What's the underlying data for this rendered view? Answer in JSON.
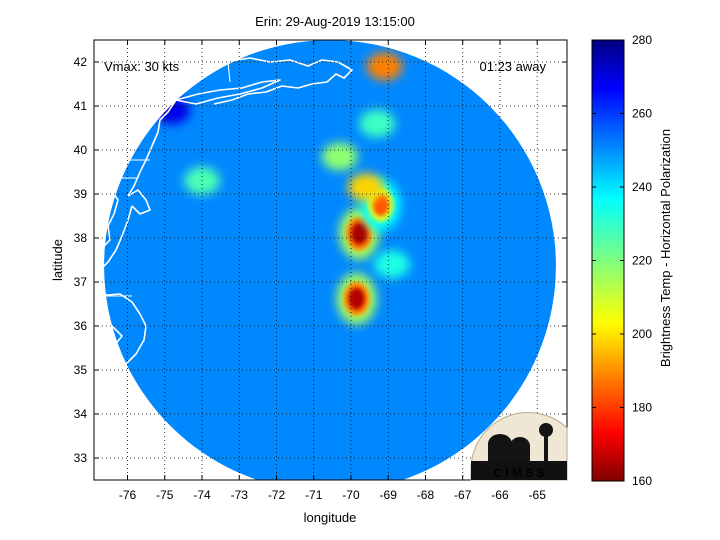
{
  "chart_data": {
    "type": "heatmap",
    "title": "Erin: 29-Aug-2019 13:15:00",
    "xlabel": "longitude",
    "ylabel": "latitude",
    "xlim": [
      -76.9,
      -64.2
    ],
    "ylim": [
      32.5,
      42.5
    ],
    "x_ticks": [
      -76,
      -75,
      -74,
      -73,
      -72,
      -71,
      -70,
      -69,
      -68,
      -67,
      -66,
      -65
    ],
    "y_ticks": [
      33,
      34,
      35,
      36,
      37,
      38,
      39,
      40,
      41,
      42
    ],
    "grid": true,
    "annotations": {
      "vmax": "Vmax: 30 kts",
      "time_away": "01:23 away"
    },
    "colorbar": {
      "label": "Brightness Temp - Horizontal Polarization",
      "range": [
        160,
        280
      ],
      "ticks": [
        160,
        180,
        200,
        220,
        240,
        260,
        280
      ],
      "colormap": "jet"
    },
    "swath_center": {
      "lon": -70.2,
      "lat": 37.3
    },
    "background_value": 249,
    "features": [
      {
        "name": "core-south",
        "lon": -69.85,
        "lat": 36.62,
        "value": 166
      },
      {
        "name": "core-north",
        "lon": -69.78,
        "lat": 38.1,
        "value": 165
      },
      {
        "name": "band-3875",
        "lon": -69.2,
        "lat": 38.75,
        "value": 185
      },
      {
        "name": "band-391",
        "lon": -69.6,
        "lat": 39.15,
        "value": 200
      },
      {
        "name": "band-398",
        "lon": -70.3,
        "lat": 39.85,
        "value": 218
      },
      {
        "name": "band-420",
        "lon": -69.1,
        "lat": 41.9,
        "value": 190
      },
      {
        "name": "band-405",
        "lon": -69.3,
        "lat": 40.6,
        "value": 228
      },
      {
        "name": "band-374",
        "lon": -68.9,
        "lat": 37.4,
        "value": 232
      },
      {
        "name": "coastal-warm",
        "lon": -74.0,
        "lat": 39.3,
        "value": 226
      },
      {
        "name": "land-cold",
        "lon": -74.8,
        "lat": 40.9,
        "value": 268
      }
    ]
  },
  "logo": {
    "text": "C I M S S"
  },
  "colors": {
    "frame": "#000000",
    "grid": "#000000",
    "coast": "#ffffff"
  }
}
